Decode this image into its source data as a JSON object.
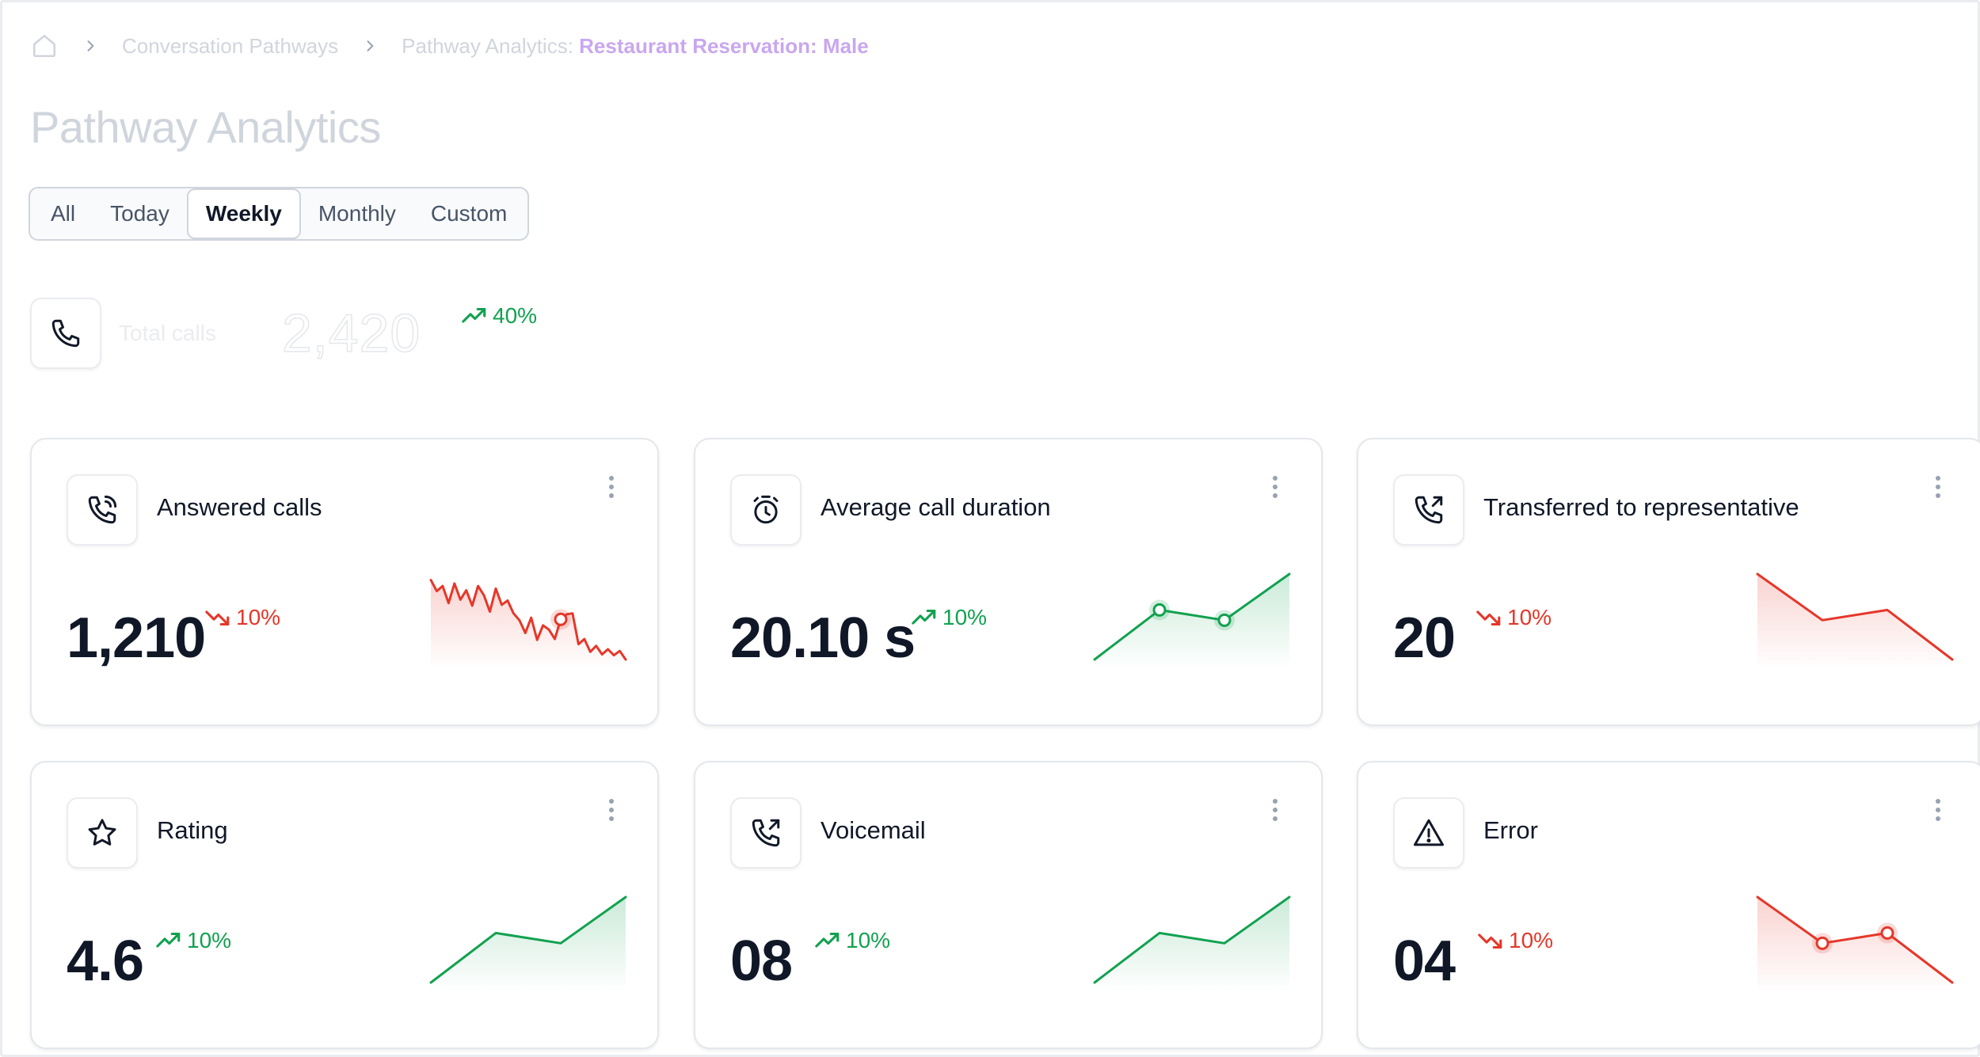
{
  "breadcrumb": {
    "home_icon": "home-icon",
    "items": [
      "Conversation Pathways"
    ],
    "current_prefix": "Pathway Analytics:",
    "current": "Restaurant Reservation: Male"
  },
  "page_title": "Pathway Analytics",
  "tabs": [
    {
      "label": "All",
      "active": false
    },
    {
      "label": "Today",
      "active": false
    },
    {
      "label": "Weekly",
      "active": true
    },
    {
      "label": "Monthly",
      "active": false
    },
    {
      "label": "Custom",
      "active": false
    }
  ],
  "total": {
    "icon": "phone-icon",
    "label": "Total calls",
    "value": "2,420",
    "trend": "40%",
    "trend_direction": "up"
  },
  "colors": {
    "up": "#12a150",
    "down": "#e5372a",
    "accent_breadcrumb": "#c9a7ef"
  },
  "cards": [
    {
      "title": "Answered calls",
      "icon": "phone-incoming-icon",
      "value": "1,210",
      "trend": "10%",
      "trend_direction": "down",
      "spark": [
        0.93,
        0.8,
        0.86,
        0.66,
        0.89,
        0.7,
        0.81,
        0.63,
        0.86,
        0.75,
        0.56,
        0.83,
        0.64,
        0.69,
        0.54,
        0.46,
        0.31,
        0.49,
        0.23,
        0.4,
        0.35,
        0.24,
        0.47,
        0.53,
        0.54,
        0.18,
        0.24,
        0.09,
        0.16,
        0.06,
        0.12,
        0.05,
        0.1,
        0.0
      ],
      "spark_markers": [
        22
      ]
    },
    {
      "title": "Average call duration",
      "icon": "stopwatch-icon",
      "value": "20.10 s",
      "trend": "10%",
      "trend_direction": "up",
      "spark": [
        0.0,
        0.58,
        0.46,
        1.0
      ],
      "spark_markers": [
        1,
        2
      ]
    },
    {
      "title": "Transferred to representative",
      "icon": "phone-forward-icon",
      "value": "20",
      "trend": "10%",
      "trend_direction": "down",
      "spark": [
        1.0,
        0.46,
        0.58,
        0.0
      ],
      "spark_markers": []
    },
    {
      "title": "Rating",
      "icon": "star-icon",
      "value": "4.6",
      "trend": "10%",
      "trend_direction": "up",
      "spark": [
        0.0,
        0.58,
        0.46,
        1.0
      ],
      "spark_markers": []
    },
    {
      "title": "Voicemail",
      "icon": "phone-forward-icon",
      "value": "08",
      "trend": "10%",
      "trend_direction": "up",
      "spark": [
        0.0,
        0.58,
        0.46,
        1.0
      ],
      "spark_markers": []
    },
    {
      "title": "Error",
      "icon": "warning-icon",
      "value": "04",
      "trend": "10%",
      "trend_direction": "down",
      "spark": [
        1.0,
        0.46,
        0.58,
        0.0
      ],
      "spark_markers": [
        1,
        2
      ]
    }
  ]
}
